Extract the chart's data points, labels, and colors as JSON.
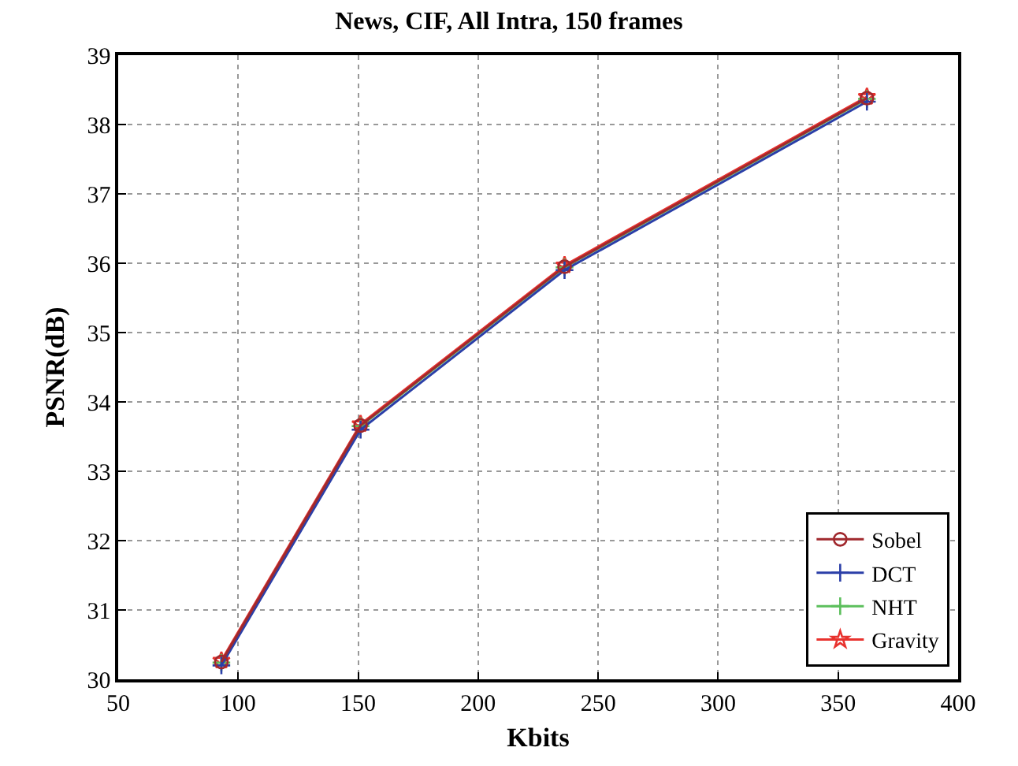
{
  "chart_data": {
    "type": "line",
    "title": "News, CIF, All Intra, 150 frames",
    "xlabel": "Kbits",
    "ylabel": "PSNR(dB)",
    "x": [
      93,
      151,
      236,
      362
    ],
    "series": [
      {
        "name": "Sobel",
        "color": "#a0282d",
        "marker": "circle",
        "values": [
          30.25,
          33.66,
          35.95,
          38.38
        ]
      },
      {
        "name": "DCT",
        "color": "#2b3fa8",
        "marker": "cross",
        "values": [
          30.2,
          33.6,
          35.9,
          38.33
        ]
      },
      {
        "name": "NHT",
        "color": "#5cbf5c",
        "marker": "cross",
        "values": [
          30.24,
          33.65,
          35.94,
          38.37
        ]
      },
      {
        "name": "Gravity",
        "color": "#e8322e",
        "marker": "star",
        "values": [
          30.27,
          33.68,
          35.97,
          38.4
        ]
      }
    ],
    "xlim": [
      50,
      400
    ],
    "xticks": [
      50,
      100,
      150,
      200,
      250,
      300,
      350,
      400
    ],
    "ylim": [
      30,
      39
    ],
    "yticks": [
      30,
      31,
      32,
      33,
      34,
      35,
      36,
      37,
      38,
      39
    ],
    "grid": true,
    "legend": "bottom right",
    "line_style": "solid"
  }
}
